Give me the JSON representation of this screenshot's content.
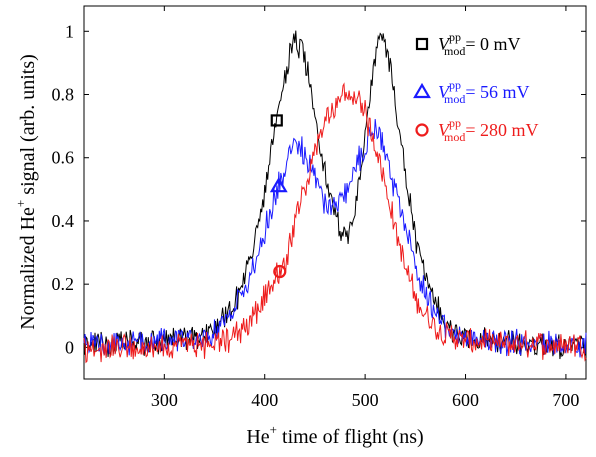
{
  "chart_data": {
    "type": "line",
    "xlabel": "He",
    "xlabel_sup": "+",
    "xlabel_rest": " time of flight (ns)",
    "ylabel": "Normalized He",
    "ylabel_sup": "+",
    "ylabel_rest": " signal (arb. units)",
    "xlim": [
      220,
      720
    ],
    "ylim": [
      -0.1,
      1.08
    ],
    "xticks": [
      300,
      400,
      500,
      600,
      700
    ],
    "yticks": [
      0,
      0.2,
      0.4,
      0.6,
      0.8,
      1
    ],
    "ytick_labels": [
      "0",
      "0.2",
      "0.4",
      "0.6",
      "0.8",
      "1"
    ],
    "legend_position": "top-right",
    "series": [
      {
        "name_var": "V",
        "name_sup": "pp",
        "name_sub": "mod",
        "name_value": "= 0 mV",
        "color": "#000000",
        "marker": "square",
        "marker_x": 412,
        "points": [
          [
            220,
            0.01
          ],
          [
            260,
            0.01
          ],
          [
            300,
            0.02
          ],
          [
            330,
            0.03
          ],
          [
            350,
            0.06
          ],
          [
            370,
            0.14
          ],
          [
            385,
            0.27
          ],
          [
            400,
            0.48
          ],
          [
            410,
            0.68
          ],
          [
            420,
            0.87
          ],
          [
            430,
            0.97
          ],
          [
            437,
            0.94
          ],
          [
            445,
            0.85
          ],
          [
            455,
            0.65
          ],
          [
            465,
            0.47
          ],
          [
            475,
            0.38
          ],
          [
            482,
            0.36
          ],
          [
            490,
            0.42
          ],
          [
            497,
            0.58
          ],
          [
            505,
            0.82
          ],
          [
            513,
            0.96
          ],
          [
            518,
            0.98
          ],
          [
            523,
            0.93
          ],
          [
            530,
            0.78
          ],
          [
            540,
            0.55
          ],
          [
            550,
            0.35
          ],
          [
            560,
            0.22
          ],
          [
            570,
            0.13
          ],
          [
            580,
            0.08
          ],
          [
            600,
            0.03
          ],
          [
            630,
            0.02
          ],
          [
            660,
            0.01
          ],
          [
            720,
            0.01
          ]
        ]
      },
      {
        "name_var": "V",
        "name_sup": "pp",
        "name_sub": "mod",
        "name_value": "= 56 mV",
        "color": "#1a1aff",
        "marker": "triangle",
        "marker_x": 414,
        "points": [
          [
            220,
            0.01
          ],
          [
            260,
            0.01
          ],
          [
            300,
            0.02
          ],
          [
            330,
            0.03
          ],
          [
            350,
            0.05
          ],
          [
            370,
            0.12
          ],
          [
            385,
            0.22
          ],
          [
            400,
            0.37
          ],
          [
            410,
            0.47
          ],
          [
            420,
            0.57
          ],
          [
            430,
            0.64
          ],
          [
            437,
            0.63
          ],
          [
            445,
            0.57
          ],
          [
            455,
            0.48
          ],
          [
            465,
            0.44
          ],
          [
            475,
            0.46
          ],
          [
            485,
            0.52
          ],
          [
            495,
            0.6
          ],
          [
            505,
            0.67
          ],
          [
            512,
            0.68
          ],
          [
            520,
            0.61
          ],
          [
            530,
            0.5
          ],
          [
            540,
            0.37
          ],
          [
            550,
            0.26
          ],
          [
            560,
            0.17
          ],
          [
            570,
            0.11
          ],
          [
            580,
            0.07
          ],
          [
            600,
            0.03
          ],
          [
            630,
            0.02
          ],
          [
            660,
            0.01
          ],
          [
            720,
            0.01
          ]
        ]
      },
      {
        "name_var": "V",
        "name_sup": "pp",
        "name_sub": "mod",
        "name_value": "= 280 mV",
        "color": "#ee1c1c",
        "marker": "circle",
        "marker_x": 415,
        "points": [
          [
            220,
            0.0
          ],
          [
            260,
            0.0
          ],
          [
            300,
            0.0
          ],
          [
            340,
            0.01
          ],
          [
            360,
            0.02
          ],
          [
            380,
            0.06
          ],
          [
            395,
            0.13
          ],
          [
            410,
            0.21
          ],
          [
            420,
            0.27
          ],
          [
            430,
            0.38
          ],
          [
            440,
            0.5
          ],
          [
            450,
            0.62
          ],
          [
            460,
            0.71
          ],
          [
            470,
            0.77
          ],
          [
            480,
            0.8
          ],
          [
            490,
            0.79
          ],
          [
            500,
            0.74
          ],
          [
            510,
            0.65
          ],
          [
            520,
            0.52
          ],
          [
            530,
            0.38
          ],
          [
            540,
            0.25
          ],
          [
            550,
            0.16
          ],
          [
            560,
            0.1
          ],
          [
            575,
            0.05
          ],
          [
            600,
            0.02
          ],
          [
            630,
            0.01
          ],
          [
            720,
            0.01
          ]
        ]
      }
    ]
  }
}
